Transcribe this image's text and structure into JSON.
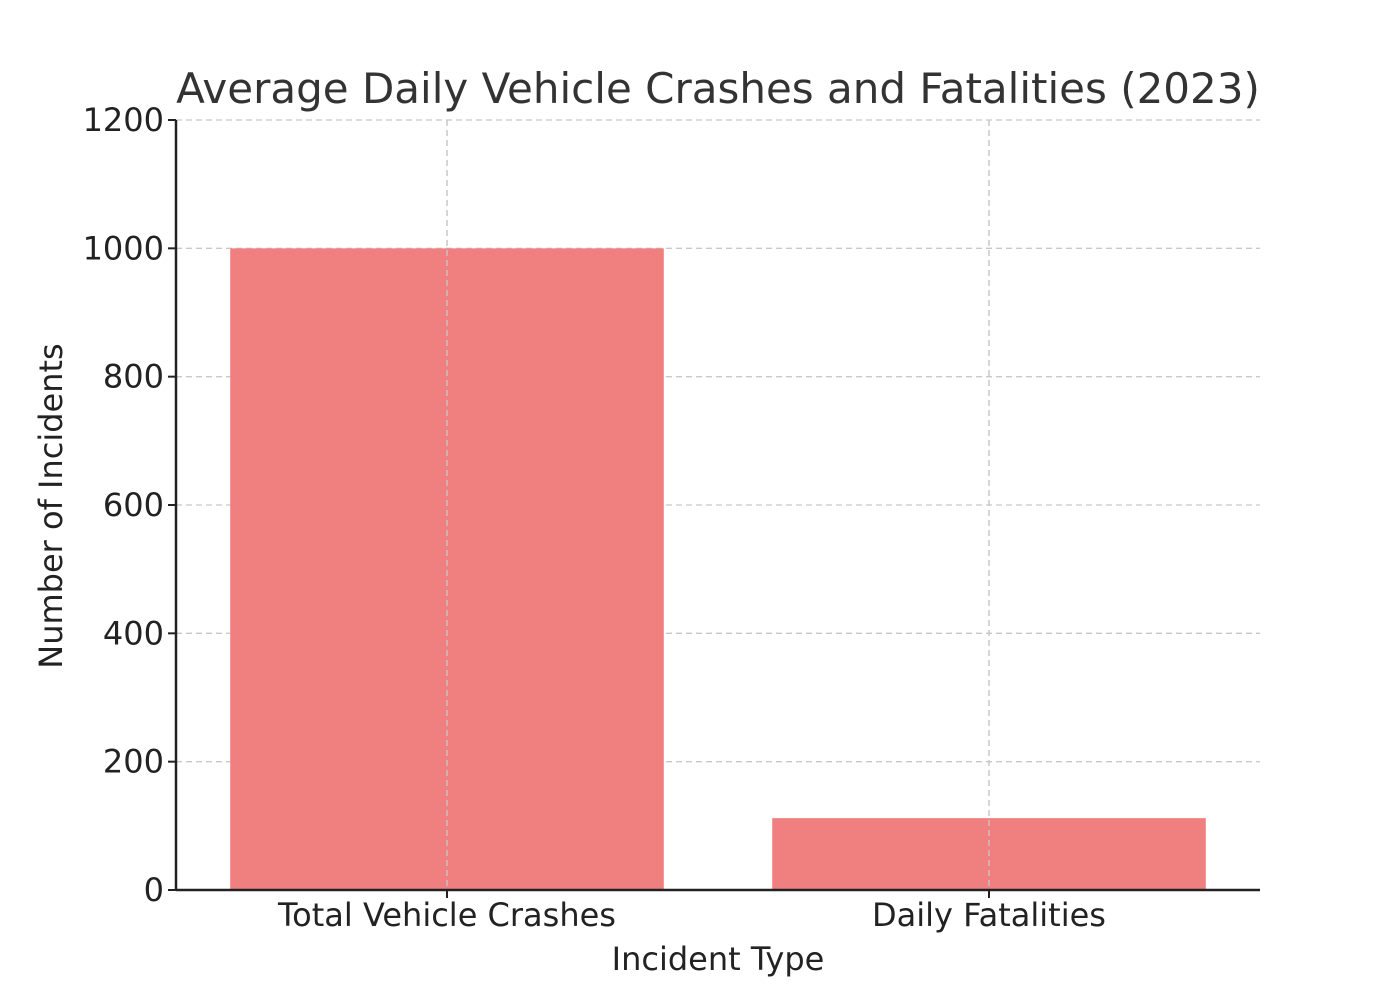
{
  "chart_data": {
    "type": "bar",
    "title": "Average Daily Vehicle Crashes and Fatalities (2023)",
    "xlabel": "Incident Type",
    "ylabel": "Number of Incidents",
    "categories": [
      "Total Vehicle Crashes",
      "Daily Fatalities"
    ],
    "values": [
      1000,
      112
    ],
    "ylim": [
      0,
      1200
    ],
    "yticks": [
      0,
      200,
      400,
      600,
      800,
      1000,
      1200
    ],
    "bar_color": "#f08080",
    "grid": true
  }
}
